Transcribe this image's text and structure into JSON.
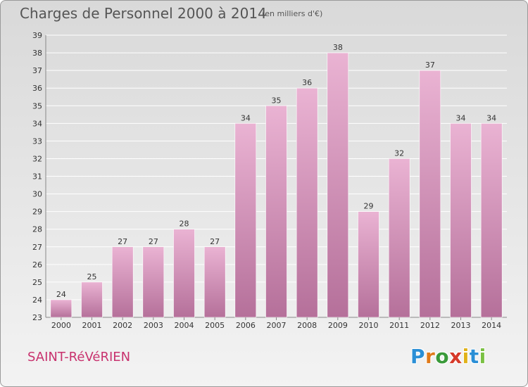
{
  "header": {
    "title": "Charges de Personnel 2000 à 2014",
    "subtitle": "(en milliers d'€)"
  },
  "footer": {
    "commune": "SAINT-RéVéRIEN",
    "logo_letters": [
      {
        "char": "P",
        "color": "#2a8fd6"
      },
      {
        "char": "r",
        "color": "#e07a1a"
      },
      {
        "char": "o",
        "color": "#3a9a3a"
      },
      {
        "char": "x",
        "color": "#d63a2a"
      },
      {
        "char": "i",
        "color": "#e0b21a"
      },
      {
        "char": "t",
        "color": "#2a8fd6"
      },
      {
        "char": "i",
        "color": "#7ac043"
      }
    ]
  },
  "colors": {
    "bar_light": "#eab3d3",
    "bar_dark": "#b5709a",
    "grid": "#ffffff"
  },
  "chart_data": {
    "type": "bar",
    "title": "Charges de Personnel 2000 à 2014",
    "subtitle": "(en milliers d'€)",
    "categories": [
      "2000",
      "2001",
      "2002",
      "2003",
      "2004",
      "2005",
      "2006",
      "2007",
      "2008",
      "2009",
      "2010",
      "2011",
      "2012",
      "2013",
      "2014"
    ],
    "values": [
      24,
      25,
      27,
      27,
      28,
      27,
      34,
      35,
      36,
      38,
      29,
      32,
      37,
      34,
      34
    ],
    "ylim": [
      23,
      39
    ],
    "yticks": [
      23,
      24,
      25,
      26,
      27,
      28,
      29,
      30,
      31,
      32,
      33,
      34,
      35,
      36,
      37,
      38,
      39
    ],
    "grid": true,
    "legend": "none"
  }
}
